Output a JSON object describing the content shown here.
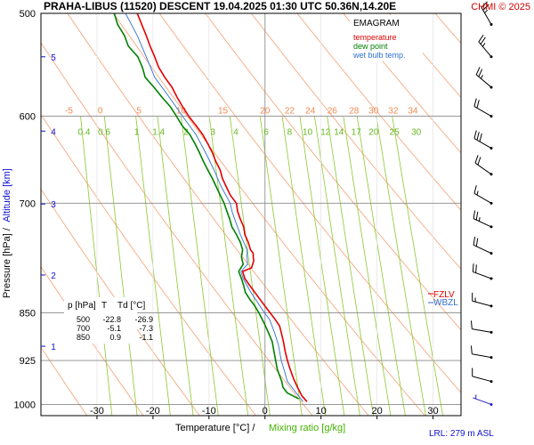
{
  "header": {
    "title": "PRAHA-LIBUS (11520)   DESCENT   19.04.2025 01:30 UTC   50.36N,14.20E",
    "credit": "CHMI © 2025"
  },
  "legend": {
    "title": "EMAGRAM",
    "items": [
      {
        "label": "temperature",
        "color": "#e00000"
      },
      {
        "label": "dew point",
        "color": "#008000"
      },
      {
        "label": "wet bulb temp.",
        "color": "#3070d0"
      }
    ]
  },
  "axes": {
    "x_label_main": "Temperature [°C]  /",
    "x_label_mix": "Mixing ratio [g/kg]",
    "y_label_main": "Pressure [hPa]  /",
    "y_label_alt": "Altitude [km]",
    "lrl": "LRL: 279 m ASL"
  },
  "markers": {
    "fzl": "FZLV",
    "wbzl": "WBZL"
  },
  "table": {
    "headers": [
      "p [hPa]",
      "T",
      "Td [°C]"
    ],
    "rows": [
      [
        "500",
        "-22.8",
        "-26.9"
      ],
      [
        "700",
        "-5.1",
        "-7.3"
      ],
      [
        "850",
        "0.9",
        "-1.1"
      ]
    ]
  },
  "chart_data": {
    "type": "line",
    "xlim": [
      -40,
      35
    ],
    "ylim": [
      1020,
      500
    ],
    "y_scale": "log",
    "x_ticks": [
      -30,
      -20,
      -10,
      0,
      10,
      20,
      30
    ],
    "y_ticks": [
      500,
      600,
      700,
      850,
      925,
      1000
    ],
    "altitude_ticks": [
      {
        "km": "1",
        "p": 902
      },
      {
        "km": "2",
        "p": 795
      },
      {
        "km": "3",
        "p": 701
      },
      {
        "km": "4",
        "p": 616
      },
      {
        "km": "5",
        "p": 540
      }
    ],
    "dry_adiabat_labels": [
      "-5",
      "0",
      "5",
      "10",
      "15",
      "20",
      "22",
      "24",
      "26",
      "28",
      "30",
      "32",
      "34"
    ],
    "dry_adiabat_label_x": [
      -35.0,
      -29.4,
      -22.5,
      -15.0,
      -7.5,
      0.0,
      4.4,
      8.1,
      12.0,
      15.9,
      19.4,
      22.9,
      26.4
    ],
    "mixing_ratio_labels": [
      "0.4",
      "0.6",
      "1",
      "1.4",
      "2",
      "3",
      "4",
      "6",
      "8",
      "10",
      "12",
      "14",
      "17",
      "20",
      "25",
      "30"
    ],
    "mixing_ratio_label_x": [
      -32.3,
      -28.7,
      -22.9,
      -19.0,
      -14.1,
      -9.3,
      -5.2,
      0.2,
      4.4,
      7.6,
      10.8,
      13.2,
      16.3,
      19.4,
      23.1,
      27.0
    ],
    "series": [
      {
        "name": "temperature",
        "color": "#e00000",
        "p": [
          995,
          985,
          970,
          955,
          940,
          925,
          910,
          895,
          880,
          870,
          860,
          850,
          840,
          830,
          820,
          810,
          800,
          790,
          785,
          780,
          775,
          770,
          765,
          760,
          750,
          740,
          730,
          720,
          710,
          700,
          690,
          680,
          670,
          660,
          650,
          640,
          630,
          620,
          610,
          600,
          590,
          580,
          570,
          560,
          550,
          540,
          530,
          520,
          510,
          500
        ],
        "t": [
          7.5,
          6.6,
          5.8,
          5.1,
          4.5,
          4.0,
          3.6,
          3.3,
          2.9,
          2.6,
          1.8,
          0.9,
          0.0,
          -0.9,
          -1.8,
          -2.7,
          -3.6,
          -4.0,
          -2.4,
          -2.2,
          -2.0,
          -2.1,
          -2.1,
          -2.6,
          -3.0,
          -3.6,
          -3.8,
          -4.4,
          -4.9,
          -5.1,
          -6.2,
          -6.9,
          -7.6,
          -8.0,
          -8.8,
          -9.4,
          -10.2,
          -11.1,
          -12.3,
          -13.6,
          -14.7,
          -15.7,
          -16.6,
          -17.9,
          -19.0,
          -19.7,
          -20.5,
          -21.2,
          -22.0,
          -22.8
        ]
      },
      {
        "name": "dew point",
        "color": "#008000",
        "p": [
          990,
          980,
          970,
          960,
          950,
          940,
          925,
          910,
          895,
          880,
          865,
          850,
          840,
          830,
          820,
          810,
          800,
          790,
          780,
          770,
          760,
          750,
          740,
          730,
          720,
          710,
          700,
          690,
          680,
          670,
          660,
          650,
          640,
          630,
          620,
          610,
          600,
          590,
          580,
          570,
          560,
          550,
          540,
          530,
          520,
          510,
          500
        ],
        "t": [
          6.0,
          4.0,
          3.2,
          3.0,
          2.6,
          2.2,
          1.9,
          1.6,
          1.3,
          0.6,
          -0.2,
          -1.1,
          -1.8,
          -2.7,
          -3.5,
          -3.8,
          -4.2,
          -4.7,
          -3.9,
          -4.2,
          -4.0,
          -4.4,
          -5.1,
          -5.9,
          -6.3,
          -6.8,
          -7.3,
          -8.0,
          -8.7,
          -9.4,
          -10.2,
          -11.0,
          -11.7,
          -12.5,
          -13.4,
          -14.8,
          -15.8,
          -16.9,
          -18.4,
          -19.8,
          -21.4,
          -21.9,
          -22.7,
          -24.4,
          -25.1,
          -26.3,
          -26.9
        ]
      },
      {
        "name": "wet bulb temp.",
        "color": "#3070d0",
        "p": [
          995,
          980,
          960,
          940,
          925,
          900,
          880,
          860,
          850,
          840,
          820,
          800,
          790,
          780,
          770,
          760,
          750,
          740,
          730,
          720,
          710,
          700,
          680,
          660,
          640,
          620,
          600,
          580,
          560,
          540,
          520,
          500
        ],
        "t": [
          6.8,
          5.6,
          4.0,
          3.4,
          2.9,
          2.4,
          1.7,
          0.8,
          -0.1,
          -0.9,
          -2.5,
          -3.9,
          -4.3,
          -3.1,
          -3.2,
          -3.2,
          -3.8,
          -4.4,
          -4.9,
          -5.4,
          -5.9,
          -6.2,
          -7.8,
          -9.1,
          -10.6,
          -12.3,
          -14.7,
          -17.1,
          -19.7,
          -21.2,
          -22.8,
          -24.9
        ]
      }
    ],
    "winds": [
      {
        "p": 1000,
        "dir": 290,
        "kt": 5
      },
      {
        "p": 960,
        "dir": 285,
        "kt": 10
      },
      {
        "p": 920,
        "dir": 280,
        "kt": 10
      },
      {
        "p": 880,
        "dir": 280,
        "kt": 10
      },
      {
        "p": 840,
        "dir": 285,
        "kt": 15
      },
      {
        "p": 800,
        "dir": 290,
        "kt": 20
      },
      {
        "p": 765,
        "dir": 295,
        "kt": 20
      },
      {
        "p": 730,
        "dir": 295,
        "kt": 25
      },
      {
        "p": 700,
        "dir": 300,
        "kt": 15
      },
      {
        "p": 665,
        "dir": 305,
        "kt": 20
      },
      {
        "p": 635,
        "dir": 300,
        "kt": 30
      },
      {
        "p": 600,
        "dir": 300,
        "kt": 20
      },
      {
        "p": 570,
        "dir": 310,
        "kt": 25
      },
      {
        "p": 540,
        "dir": 320,
        "kt": 25
      },
      {
        "p": 510,
        "dir": 330,
        "kt": 25
      }
    ]
  }
}
